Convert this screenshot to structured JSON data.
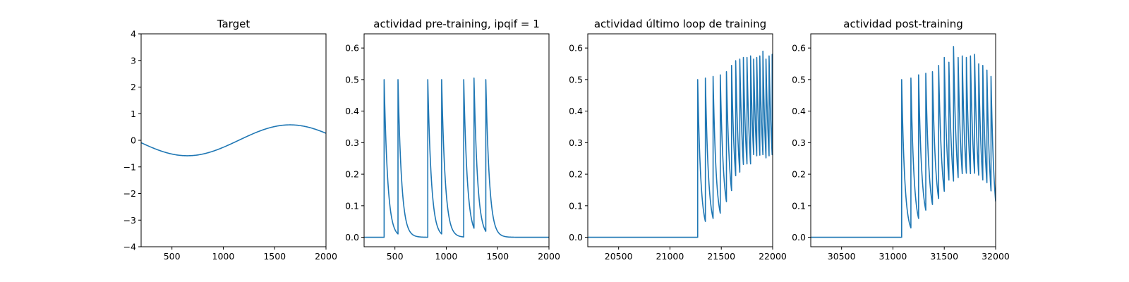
{
  "figure": {
    "line_color": "#1f77b4",
    "background": "#ffffff"
  },
  "chart_data": [
    {
      "type": "line",
      "title": "Target",
      "xlabel": "",
      "ylabel": "",
      "xlim": [
        200,
        2000
      ],
      "ylim": [
        -4,
        4
      ],
      "xticks": [
        500,
        1000,
        1500,
        2000
      ],
      "yticks": [
        -4,
        -3,
        -2,
        -1,
        0,
        1,
        2,
        3,
        4
      ],
      "grid": false,
      "series": [
        {
          "kind": "sine",
          "x_start": 200,
          "x_end": 2000,
          "amplitude": 0.58,
          "period": 2000,
          "phase_x": 1150
        }
      ]
    },
    {
      "type": "line",
      "title": "actividad pre-training, ipqif = 1",
      "xlabel": "",
      "ylabel": "",
      "xlim": [
        200,
        2000
      ],
      "ylim": [
        -0.03,
        0.645
      ],
      "xticks": [
        500,
        1000,
        1500,
        2000
      ],
      "yticks": [
        0.0,
        0.1,
        0.2,
        0.3,
        0.4,
        0.5,
        0.6
      ],
      "grid": false,
      "series": [
        {
          "kind": "spikes",
          "x_start": 200,
          "x_end": 2000,
          "baseline": 0.0,
          "tau": 35,
          "spike_times": [
            395,
            530,
            820,
            955,
            1170,
            1270,
            1385
          ],
          "spike_peaks": [
            0.5,
            0.5,
            0.5,
            0.5,
            0.5,
            0.505,
            0.5
          ]
        }
      ]
    },
    {
      "type": "line",
      "title": "actividad último loop de training",
      "xlabel": "",
      "ylabel": "",
      "xlim": [
        20200,
        22000
      ],
      "ylim": [
        -0.03,
        0.645
      ],
      "xticks": [
        20500,
        21000,
        21500,
        22000
      ],
      "yticks": [
        0.0,
        0.1,
        0.2,
        0.3,
        0.4,
        0.5,
        0.6
      ],
      "grid": false,
      "series": [
        {
          "kind": "spikes",
          "x_start": 20200,
          "x_end": 22000,
          "baseline": 0.0,
          "tau": 30,
          "spike_times": [
            21270,
            21345,
            21420,
            21490,
            21550,
            21600,
            21640,
            21680,
            21715,
            21750,
            21785,
            21815,
            21845,
            21875,
            21905,
            21935,
            21965,
            21995
          ],
          "spike_peaks": [
            0.5,
            0.505,
            0.51,
            0.515,
            0.525,
            0.545,
            0.56,
            0.565,
            0.57,
            0.57,
            0.575,
            0.565,
            0.57,
            0.575,
            0.59,
            0.565,
            0.575,
            0.58
          ],
          "spike_floors": [
            0.0,
            0.01,
            0.02,
            0.03,
            0.05,
            0.06,
            0.07,
            0.08,
            0.08,
            0.08,
            0.08,
            0.08,
            0.08,
            0.08,
            0.08,
            0.055,
            0.08,
            0.08
          ]
        }
      ]
    },
    {
      "type": "line",
      "title": "actividad post-training",
      "xlabel": "",
      "ylabel": "",
      "xlim": [
        30200,
        32000
      ],
      "ylim": [
        -0.03,
        0.645
      ],
      "xticks": [
        30500,
        31000,
        31500,
        32000
      ],
      "yticks": [
        0.0,
        0.1,
        0.2,
        0.3,
        0.4,
        0.5,
        0.6
      ],
      "grid": false,
      "series": [
        {
          "kind": "spikes",
          "x_start": 30200,
          "x_end": 32000,
          "baseline": 0.0,
          "tau": 30,
          "spike_times": [
            31085,
            31175,
            31250,
            31320,
            31385,
            31445,
            31500,
            31545,
            31590,
            31635,
            31675,
            31715,
            31755,
            31795,
            31835,
            31875,
            31915,
            31955
          ],
          "spike_peaks": [
            0.5,
            0.505,
            0.515,
            0.52,
            0.525,
            0.545,
            0.57,
            0.555,
            0.605,
            0.57,
            0.575,
            0.57,
            0.575,
            0.58,
            0.55,
            0.545,
            0.53,
            0.51
          ],
          "spike_floors": [
            0.0,
            0.005,
            0.02,
            0.04,
            0.05,
            0.06,
            0.07,
            0.07,
            0.07,
            0.07,
            0.07,
            0.07,
            0.07,
            0.07,
            0.06,
            0.05,
            0.04,
            0.01
          ]
        }
      ]
    }
  ]
}
